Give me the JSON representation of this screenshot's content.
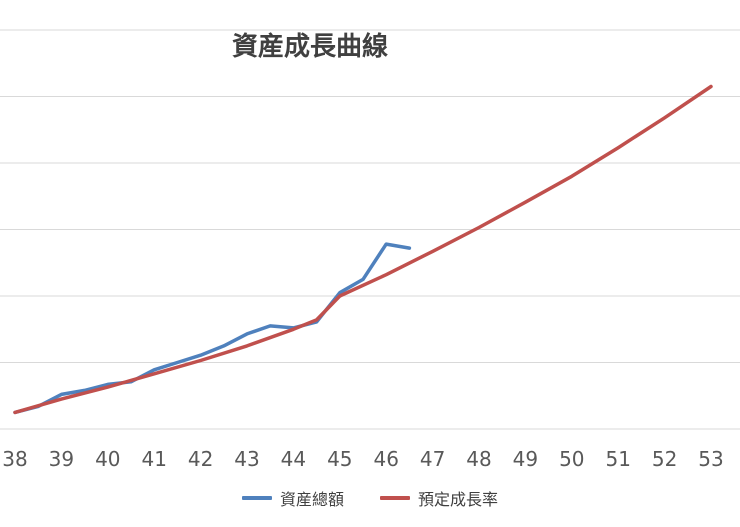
{
  "chart_data": {
    "type": "line",
    "title": "資産成長曲線",
    "xlabel": "",
    "ylabel": "",
    "x_ticks": [
      38,
      39,
      40,
      41,
      42,
      43,
      44,
      45,
      46,
      47,
      48,
      49,
      50,
      51,
      52,
      53
    ],
    "xlim": [
      38,
      53
    ],
    "ylim": [
      0,
      6
    ],
    "y_tick_labels_shown": false,
    "grid": "horizontal",
    "legend_position": "bottom",
    "series": [
      {
        "name": "資産總額",
        "color": "#4f81bd",
        "x": [
          38,
          38.5,
          39,
          39.5,
          40,
          40.5,
          41,
          41.5,
          42,
          42.5,
          43,
          43.5,
          44,
          44.5,
          45,
          45.5,
          46,
          46.5
        ],
        "y": [
          0.25,
          0.34,
          0.52,
          0.58,
          0.67,
          0.71,
          0.89,
          1.0,
          1.11,
          1.25,
          1.43,
          1.55,
          1.52,
          1.61,
          2.05,
          2.25,
          2.78,
          2.72
        ]
      },
      {
        "name": "預定成長率",
        "color": "#c0504d",
        "x": [
          38,
          39,
          40,
          41,
          42,
          43,
          44,
          44.5,
          45,
          46,
          47,
          48,
          49,
          50,
          51,
          52,
          53
        ],
        "y": [
          0.25,
          0.45,
          0.63,
          0.83,
          1.03,
          1.25,
          1.5,
          1.64,
          2.0,
          2.32,
          2.67,
          3.03,
          3.41,
          3.8,
          4.23,
          4.68,
          5.15
        ]
      }
    ]
  },
  "colors": {
    "grid": "#d9d9d9",
    "text": "#595959"
  }
}
